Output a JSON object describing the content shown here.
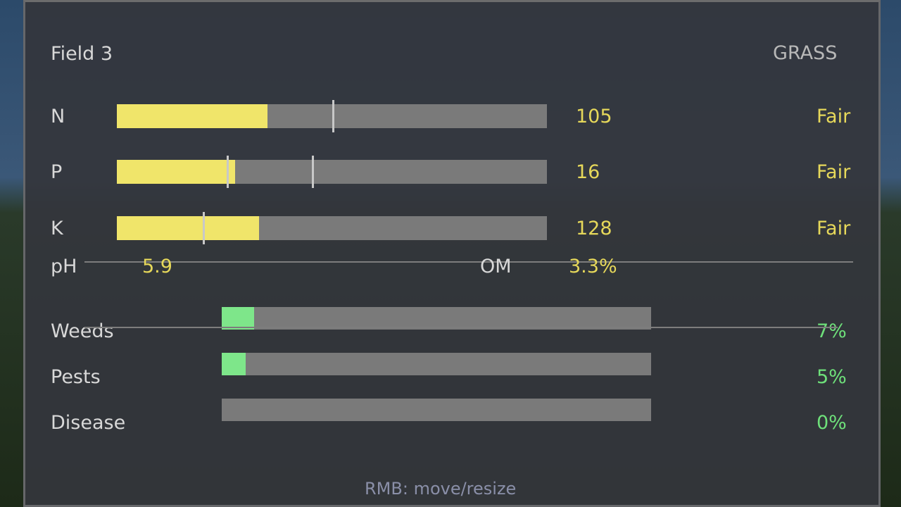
{
  "field": {
    "title": "Field 3",
    "crop": "GRASS"
  },
  "nutrients": [
    {
      "label": "N",
      "value": "105",
      "status": "Fair",
      "fill": 0.35,
      "markers": [
        0.5
      ]
    },
    {
      "label": "P",
      "value": "16",
      "status": "Fair",
      "fill": 0.275,
      "markers": [
        0.255,
        0.453
      ]
    },
    {
      "label": "K",
      "value": "128",
      "status": "Fair",
      "fill": 0.33,
      "markers": [
        0.2
      ]
    }
  ],
  "soil": {
    "ph_label": "pH",
    "ph_value": "5.9",
    "om_label": "OM",
    "om_value": "3.3%"
  },
  "threats": [
    {
      "label": "Weeds",
      "value": "7%",
      "fill": 0.075
    },
    {
      "label": "Pests",
      "value": "5%",
      "fill": 0.055
    },
    {
      "label": "Disease",
      "value": "0%",
      "fill": 0
    }
  ],
  "footer": {
    "hint": "RMB: move/resize"
  },
  "colors": {
    "nutrient_fill": "#f0e56a",
    "threat_fill": "#7ee68a",
    "bar_bg": "#7a7a7a",
    "panel": "#36383d"
  }
}
